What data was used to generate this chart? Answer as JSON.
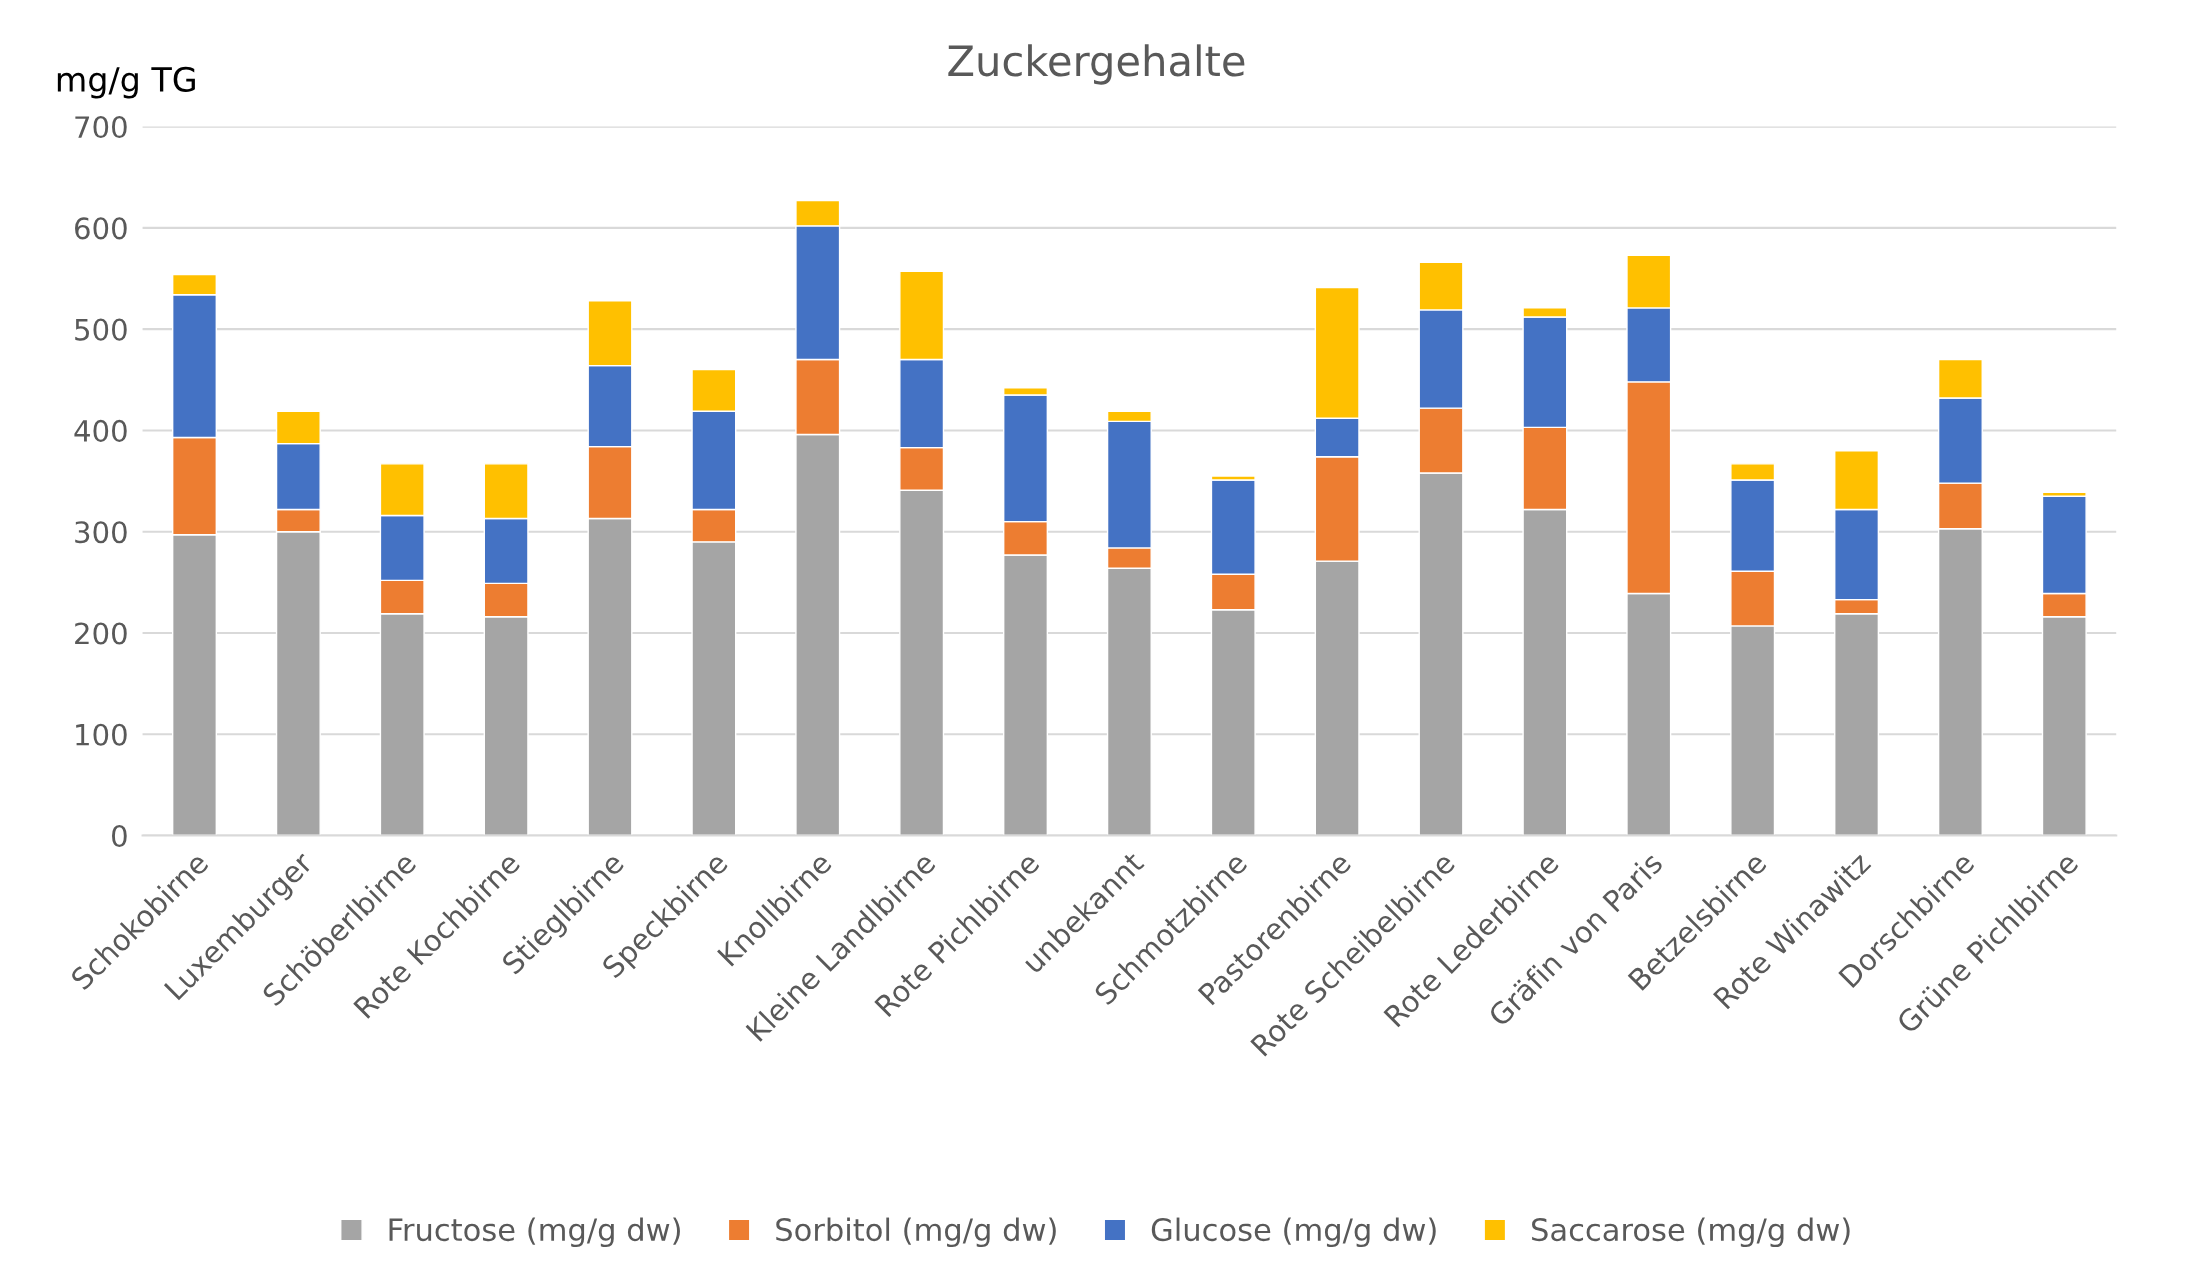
{
  "chart_data": {
    "type": "bar",
    "title": "Zuckergehalte",
    "ylabel": "mg/g TG",
    "categories": [
      "Schokobirne",
      "Luxemburger",
      "Schöberlbirne",
      "Rote Kochbirne",
      "Stieglbirne",
      "Speckbirne",
      "Knollbirne",
      "Kleine Landlbirne",
      "Rote Pichlbirne",
      "unbekannt",
      "Schmotzbirne",
      "Pastorenbirne",
      "Rote Scheibelbirne",
      "Rote Lederbirne",
      "Gräfin von Paris",
      "Betzelsbirne",
      "Rote Winawitz",
      "Dorschbirne",
      "Grüne Pichlbirne"
    ],
    "stacked": true,
    "series": [
      {
        "name": "Fructose (mg/g dw)",
        "color": "#a5a5a5",
        "values": [
          297,
          300,
          219,
          216,
          313,
          290,
          396,
          341,
          277,
          264,
          223,
          271,
          358,
          322,
          239,
          207,
          219,
          303,
          216
        ]
      },
      {
        "name": "Sorbitol (mg/g dw)",
        "color": "#ed7d31",
        "values": [
          96,
          22,
          33,
          33,
          71,
          32,
          74,
          42,
          33,
          20,
          35,
          103,
          64,
          81,
          209,
          54,
          14,
          45,
          23
        ]
      },
      {
        "name": "Glucose (mg/g dw)",
        "color": "#4472c4",
        "values": [
          141,
          65,
          64,
          64,
          80,
          97,
          132,
          87,
          125,
          125,
          93,
          38,
          97,
          109,
          73,
          90,
          89,
          84,
          96
        ]
      },
      {
        "name": "Saccarose (mg/g dw)",
        "color": "#ffc000",
        "values": [
          20,
          32,
          51,
          54,
          64,
          41,
          25,
          87,
          7,
          10,
          4,
          129,
          47,
          9,
          52,
          16,
          58,
          38,
          4
        ]
      }
    ],
    "ylim": [
      0,
      700
    ],
    "yticks": [
      0,
      100,
      200,
      300,
      400,
      500,
      600,
      700
    ],
    "grid": "y",
    "legend": "bottom"
  }
}
